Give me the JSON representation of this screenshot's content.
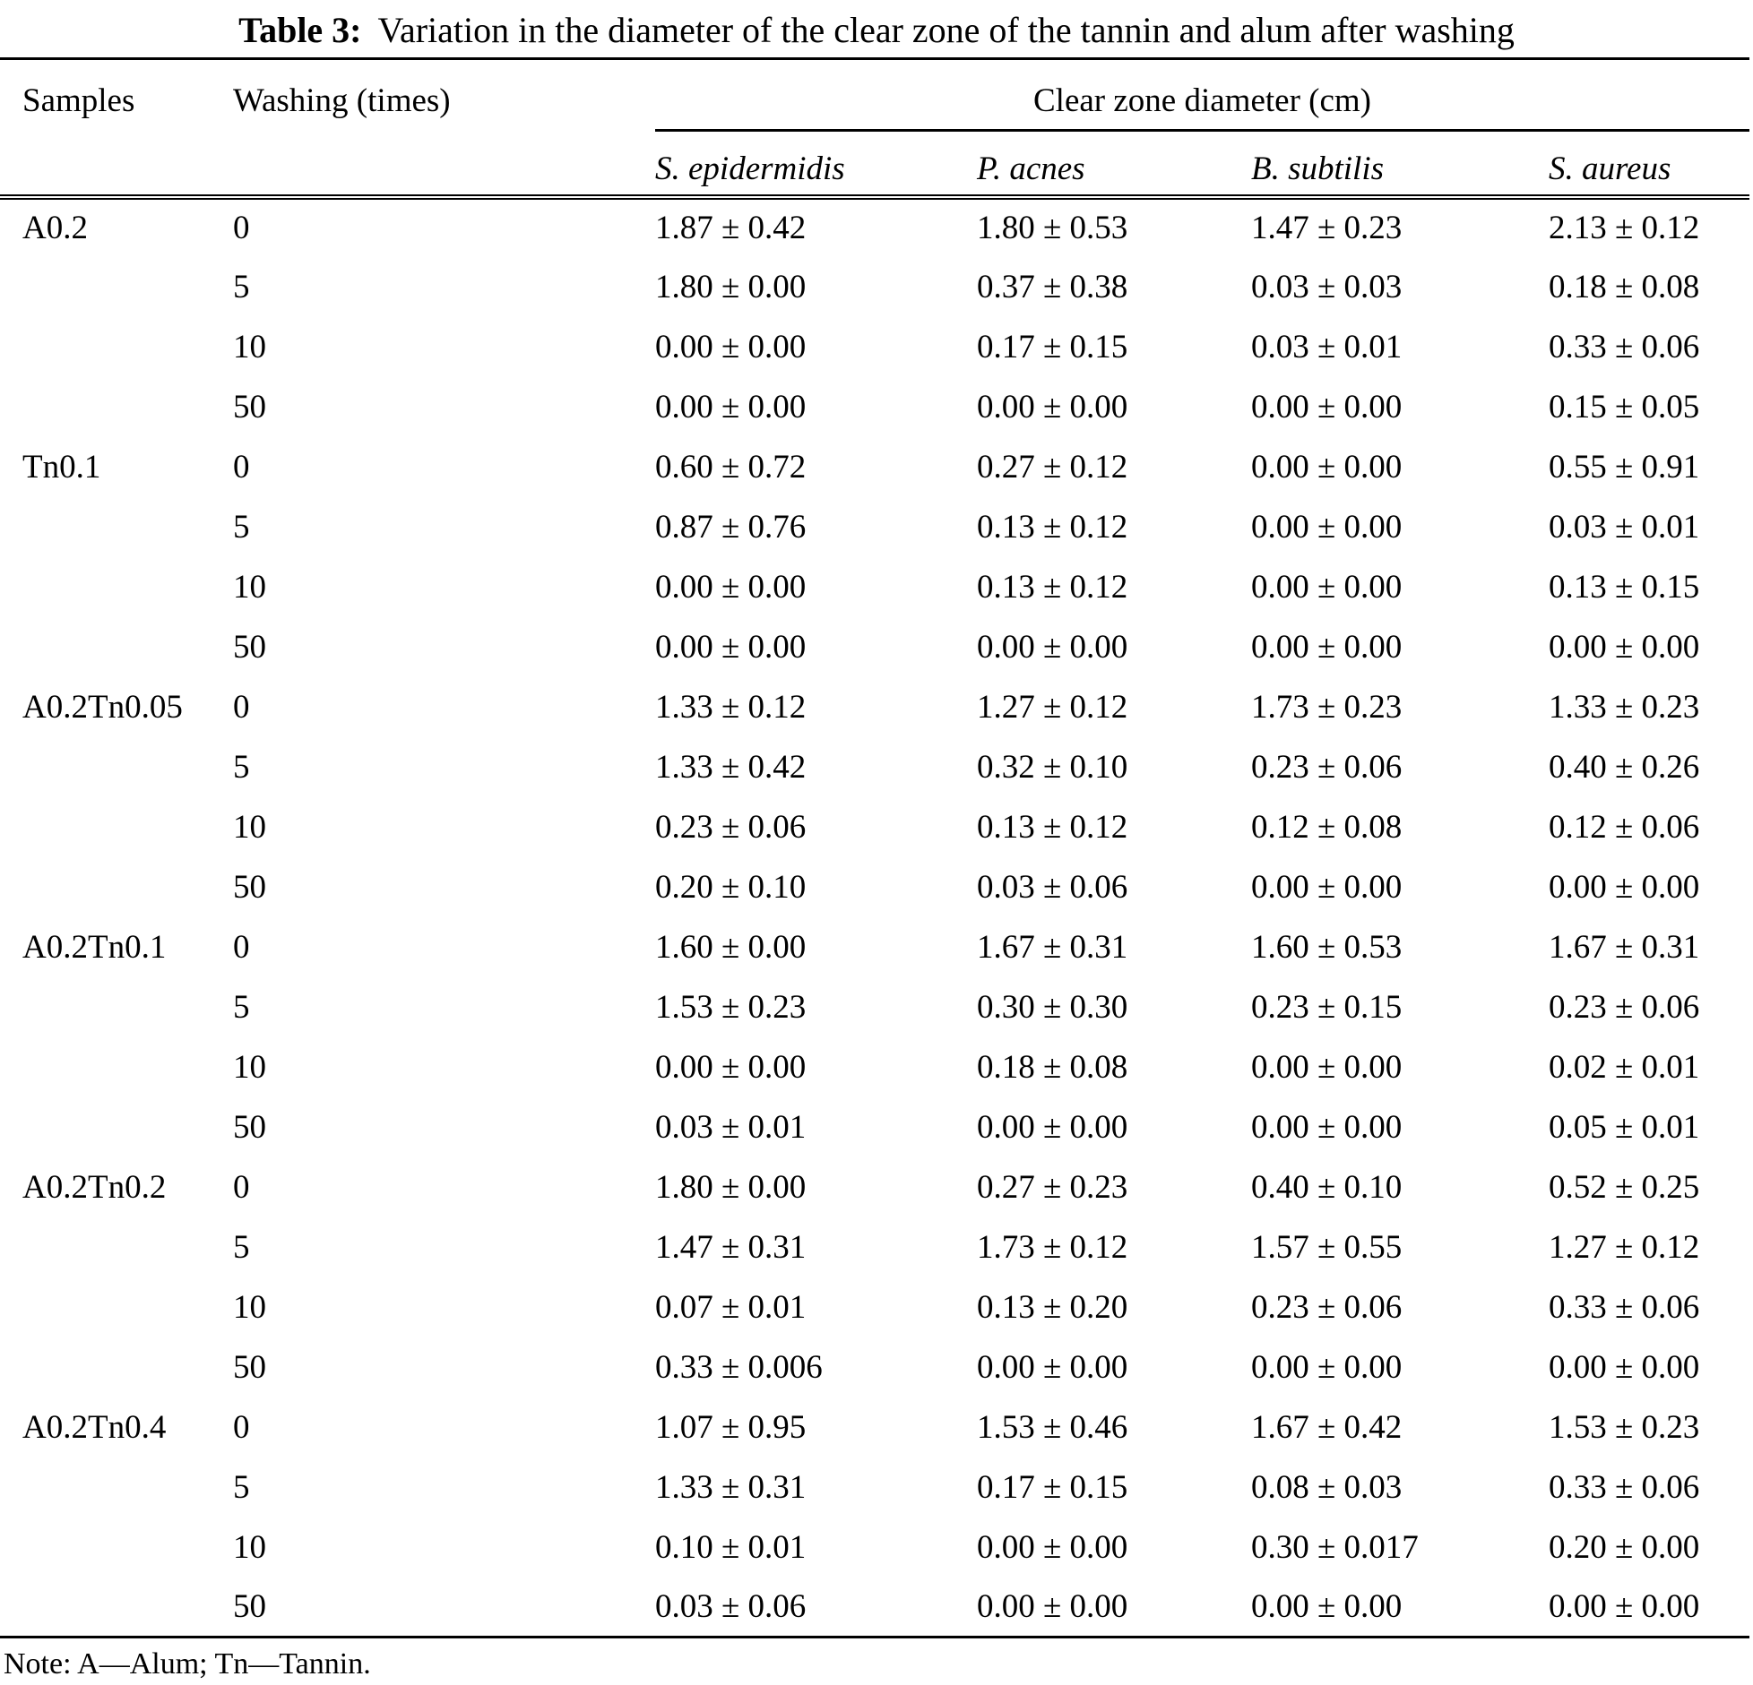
{
  "title": {
    "label": "Table 3:",
    "text": "Variation in the diameter of the clear zone of the tannin and alum after washing"
  },
  "columns": {
    "samples": "Samples",
    "washing": "Washing (times)",
    "clear_zone": "Clear zone diameter (cm)"
  },
  "species": [
    "S. epidermidis",
    "P. acnes",
    "B. subtilis",
    "S. aureus"
  ],
  "groups": [
    {
      "sample": "A0.2",
      "rows": [
        {
          "washing": "0",
          "values": [
            "1.87 ± 0.42",
            "1.80 ± 0.53",
            "1.47 ± 0.23",
            "2.13 ± 0.12"
          ]
        },
        {
          "washing": "5",
          "values": [
            "1.80 ± 0.00",
            "0.37 ± 0.38",
            "0.03 ± 0.03",
            "0.18 ± 0.08"
          ]
        },
        {
          "washing": "10",
          "values": [
            "0.00 ± 0.00",
            "0.17 ± 0.15",
            "0.03 ± 0.01",
            "0.33 ± 0.06"
          ]
        },
        {
          "washing": "50",
          "values": [
            "0.00 ± 0.00",
            "0.00 ± 0.00",
            "0.00 ± 0.00",
            "0.15 ± 0.05"
          ]
        }
      ]
    },
    {
      "sample": "Tn0.1",
      "rows": [
        {
          "washing": "0",
          "values": [
            "0.60 ± 0.72",
            "0.27 ± 0.12",
            "0.00 ± 0.00",
            "0.55 ± 0.91"
          ]
        },
        {
          "washing": "5",
          "values": [
            "0.87 ± 0.76",
            "0.13 ± 0.12",
            "0.00 ± 0.00",
            "0.03 ± 0.01"
          ]
        },
        {
          "washing": "10",
          "values": [
            "0.00 ± 0.00",
            "0.13 ± 0.12",
            "0.00 ± 0.00",
            "0.13 ± 0.15"
          ]
        },
        {
          "washing": "50",
          "values": [
            "0.00 ± 0.00",
            "0.00 ± 0.00",
            "0.00 ± 0.00",
            "0.00 ± 0.00"
          ]
        }
      ]
    },
    {
      "sample": "A0.2Tn0.05",
      "rows": [
        {
          "washing": "0",
          "values": [
            "1.33 ± 0.12",
            "1.27 ± 0.12",
            "1.73 ± 0.23",
            "1.33 ± 0.23"
          ]
        },
        {
          "washing": "5",
          "values": [
            "1.33 ± 0.42",
            "0.32 ± 0.10",
            "0.23 ± 0.06",
            "0.40 ± 0.26"
          ]
        },
        {
          "washing": "10",
          "values": [
            "0.23 ± 0.06",
            "0.13 ± 0.12",
            "0.12 ± 0.08",
            "0.12 ± 0.06"
          ]
        },
        {
          "washing": "50",
          "values": [
            "0.20 ± 0.10",
            "0.03 ± 0.06",
            "0.00 ± 0.00",
            "0.00 ± 0.00"
          ]
        }
      ]
    },
    {
      "sample": "A0.2Tn0.1",
      "rows": [
        {
          "washing": "0",
          "values": [
            "1.60 ± 0.00",
            "1.67 ± 0.31",
            "1.60 ± 0.53",
            "1.67 ± 0.31"
          ]
        },
        {
          "washing": "5",
          "values": [
            "1.53 ± 0.23",
            "0.30 ± 0.30",
            "0.23 ± 0.15",
            "0.23 ± 0.06"
          ]
        },
        {
          "washing": "10",
          "values": [
            "0.00 ± 0.00",
            "0.18 ± 0.08",
            "0.00 ± 0.00",
            "0.02 ± 0.01"
          ]
        },
        {
          "washing": "50",
          "values": [
            "0.03 ± 0.01",
            "0.00 ± 0.00",
            "0.00 ± 0.00",
            "0.05 ± 0.01"
          ]
        }
      ]
    },
    {
      "sample": "A0.2Tn0.2",
      "rows": [
        {
          "washing": "0",
          "values": [
            "1.80 ± 0.00",
            "0.27 ± 0.23",
            "0.40 ± 0.10",
            "0.52 ± 0.25"
          ]
        },
        {
          "washing": "5",
          "values": [
            "1.47 ± 0.31",
            "1.73 ± 0.12",
            "1.57 ± 0.55",
            "1.27 ± 0.12"
          ]
        },
        {
          "washing": "10",
          "values": [
            "0.07 ± 0.01",
            "0.13 ± 0.20",
            "0.23 ± 0.06",
            "0.33 ± 0.06"
          ]
        },
        {
          "washing": "50",
          "values": [
            "0.33 ± 0.006",
            "0.00 ± 0.00",
            "0.00 ± 0.00",
            "0.00 ± 0.00"
          ]
        }
      ]
    },
    {
      "sample": "A0.2Tn0.4",
      "rows": [
        {
          "washing": "0",
          "values": [
            "1.07 ± 0.95",
            "1.53 ± 0.46",
            "1.67 ± 0.42",
            "1.53 ± 0.23"
          ]
        },
        {
          "washing": "5",
          "values": [
            "1.33 ± 0.31",
            "0.17 ± 0.15",
            "0.08 ± 0.03",
            "0.33 ± 0.06"
          ]
        },
        {
          "washing": "10",
          "values": [
            "0.10 ± 0.01",
            "0.00 ± 0.00",
            "0.30 ± 0.017",
            "0.20 ± 0.00"
          ]
        },
        {
          "washing": "50",
          "values": [
            "0.03 ± 0.06",
            "0.00 ± 0.00",
            "0.00 ± 0.00",
            "0.00 ± 0.00"
          ]
        }
      ]
    }
  ],
  "note": "Note: A—Alum; Tn—Tannin."
}
